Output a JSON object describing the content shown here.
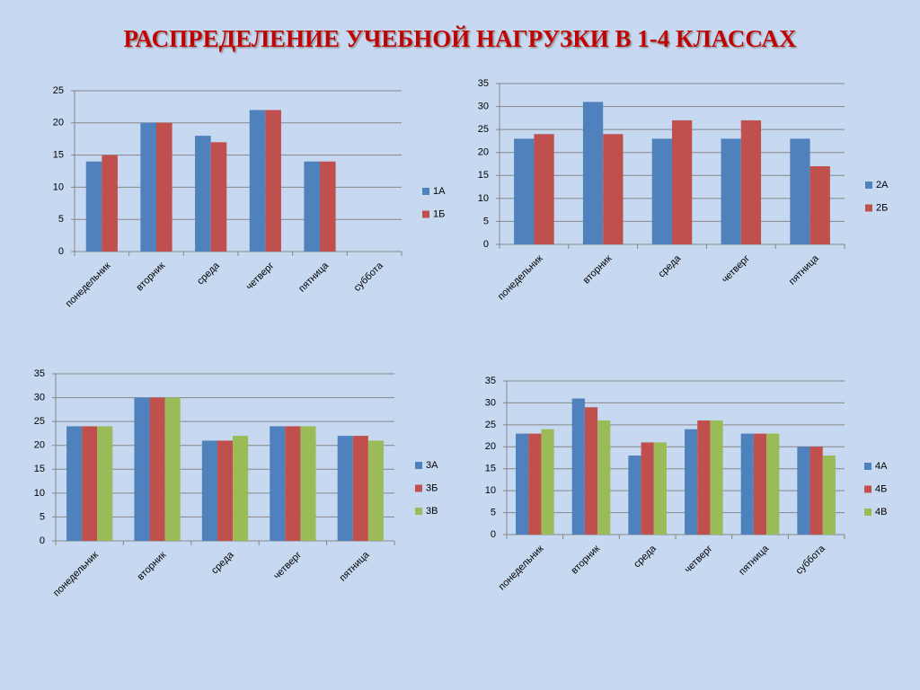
{
  "title": "РАСПРЕДЕЛЕНИЕ УЧЕБНОЙ НАГРУЗКИ В 1-4 КЛАССАХ",
  "chart_data": [
    {
      "type": "bar",
      "categories": [
        "понедельник",
        "вторник",
        "среда",
        "четверг",
        "пятница",
        "суббота"
      ],
      "series": [
        {
          "name": "1А",
          "color": "#4f81bd",
          "values": [
            14,
            20,
            18,
            22,
            14,
            null
          ]
        },
        {
          "name": "1Б",
          "color": "#c0504d",
          "values": [
            15,
            20,
            17,
            22,
            14,
            null
          ]
        }
      ],
      "ylim": [
        0,
        25
      ],
      "yticks": [
        0,
        5,
        10,
        15,
        20,
        25
      ],
      "grid": true,
      "legend": "right"
    },
    {
      "type": "bar",
      "categories": [
        "понедельник",
        "вторник",
        "среда",
        "четверг",
        "пятница"
      ],
      "series": [
        {
          "name": "2А",
          "color": "#4f81bd",
          "values": [
            23,
            31,
            23,
            23,
            23
          ]
        },
        {
          "name": "2Б",
          "color": "#c0504d",
          "values": [
            24,
            24,
            27,
            27,
            17
          ]
        }
      ],
      "ylim": [
        0,
        35
      ],
      "yticks": [
        0,
        5,
        10,
        15,
        20,
        25,
        30,
        35
      ],
      "grid": true,
      "legend": "right"
    },
    {
      "type": "bar",
      "categories": [
        "понедельник",
        "вторник",
        "среда",
        "четверг",
        "пятница"
      ],
      "series": [
        {
          "name": "3А",
          "color": "#4f81bd",
          "values": [
            24,
            30,
            21,
            24,
            22
          ]
        },
        {
          "name": "3Б",
          "color": "#c0504d",
          "values": [
            24,
            30,
            21,
            24,
            22
          ]
        },
        {
          "name": "3В",
          "color": "#9bbb59",
          "values": [
            24,
            30,
            22,
            24,
            21
          ]
        }
      ],
      "ylim": [
        0,
        35
      ],
      "yticks": [
        0,
        5,
        10,
        15,
        20,
        25,
        30,
        35
      ],
      "grid": true,
      "legend": "right"
    },
    {
      "type": "bar",
      "categories": [
        "понедельник",
        "вторник",
        "среда",
        "четверг",
        "пятница",
        "суббота"
      ],
      "series": [
        {
          "name": "4А",
          "color": "#4f81bd",
          "values": [
            23,
            31,
            18,
            24,
            23,
            20
          ]
        },
        {
          "name": "4Б",
          "color": "#c0504d",
          "values": [
            23,
            29,
            21,
            26,
            23,
            20
          ]
        },
        {
          "name": "4В",
          "color": "#9bbb59",
          "values": [
            24,
            26,
            21,
            26,
            23,
            18
          ]
        }
      ],
      "ylim": [
        0,
        35
      ],
      "yticks": [
        0,
        5,
        10,
        15,
        20,
        25,
        30,
        35
      ],
      "grid": true,
      "legend": "right"
    }
  ]
}
